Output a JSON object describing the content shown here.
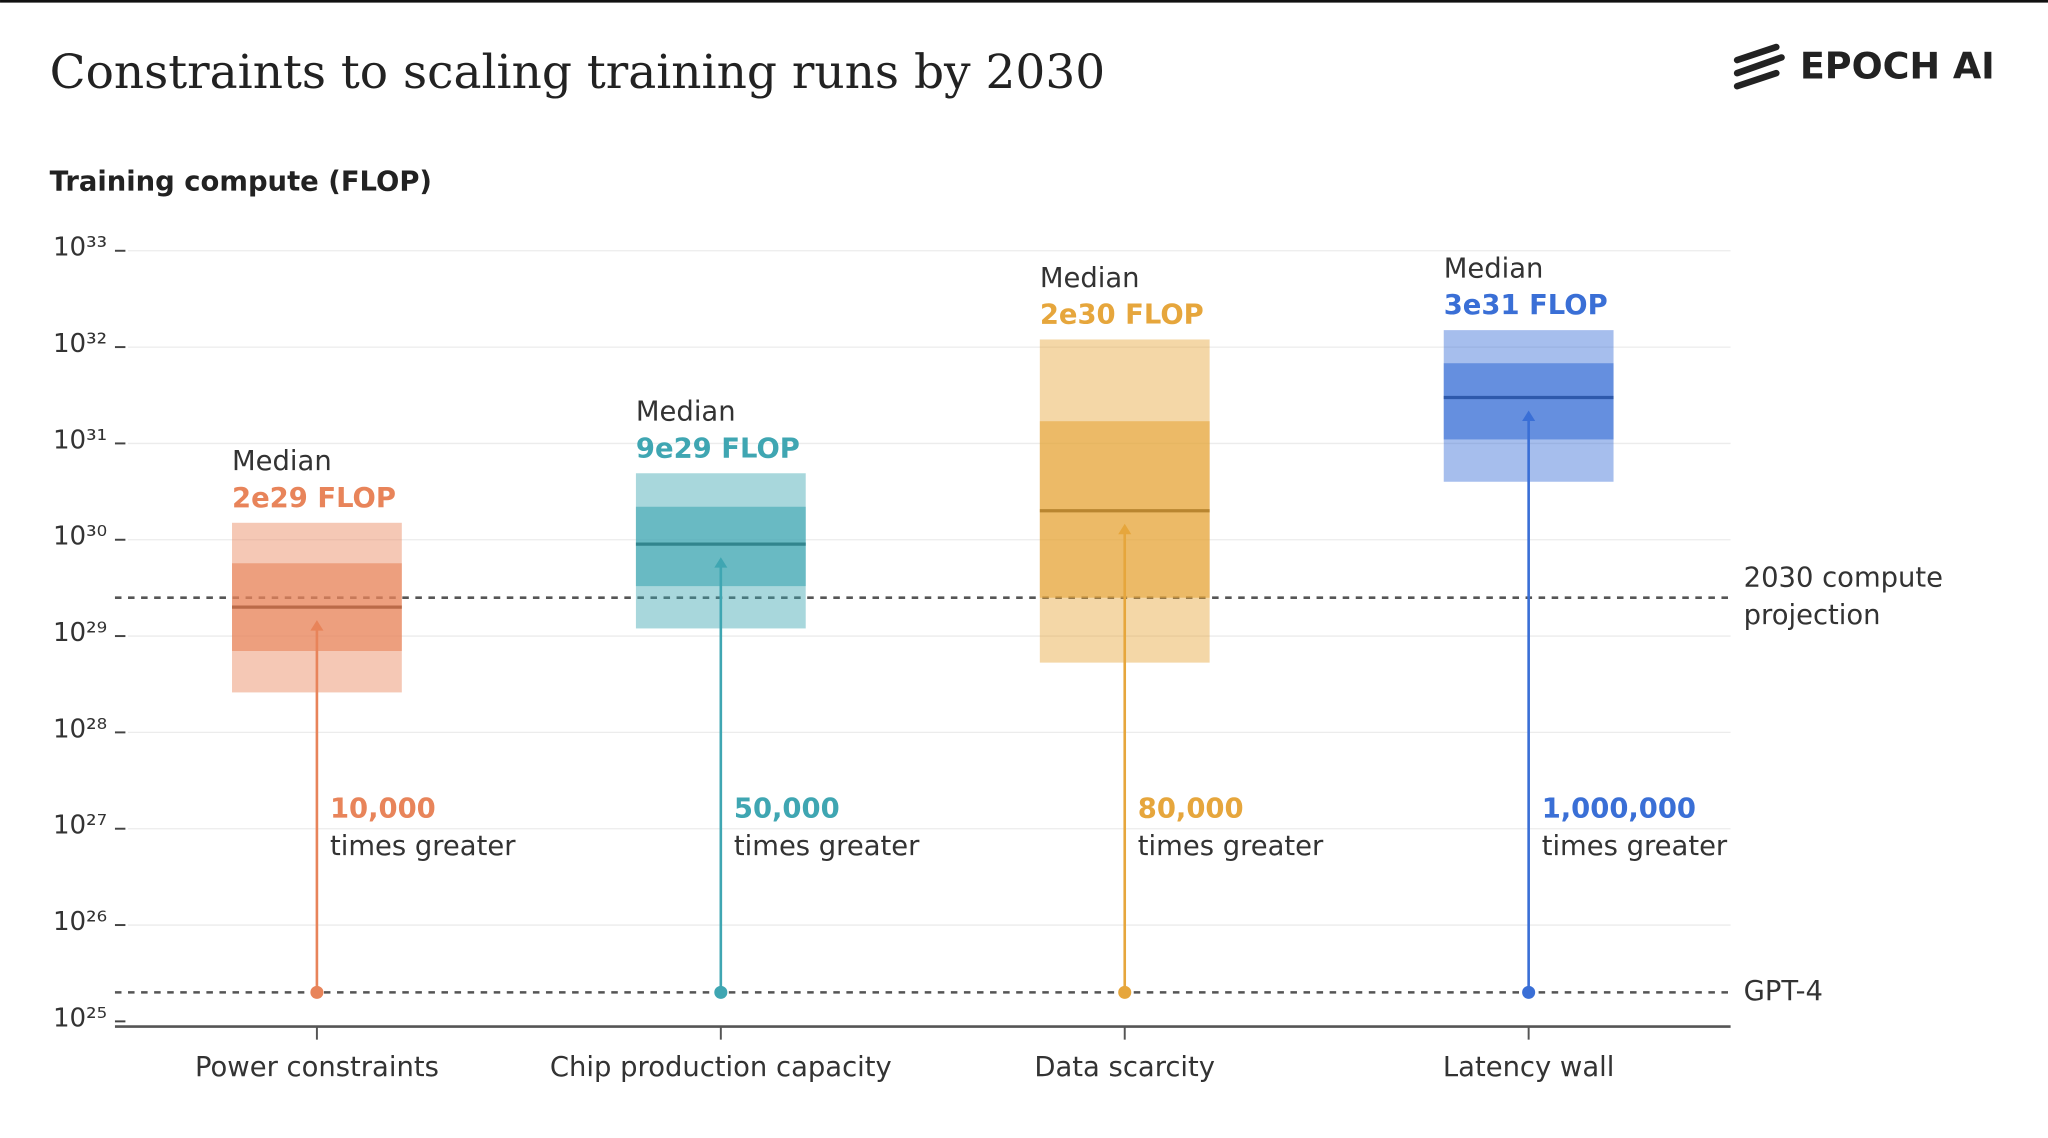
{
  "chart_data": {
    "type": "range-box",
    "title": "Constraints to scaling training runs by 2030",
    "logo": "EPOCH AI",
    "y_label": "Training compute (FLOP)",
    "log_scale": true,
    "grid": true,
    "ylim": [
      1e+25,
      1e+33
    ],
    "yticks": [
      {
        "value": 1e+25,
        "label": "10²⁵"
      },
      {
        "value": 1e+26,
        "label": "10²⁶"
      },
      {
        "value": 1e+27,
        "label": "10²⁷"
      },
      {
        "value": 1e+28,
        "label": "10²⁸"
      },
      {
        "value": 1e+29,
        "label": "10²⁹"
      },
      {
        "value": 1e+30,
        "label": "10³⁰"
      },
      {
        "value": 1e+31,
        "label": "10³¹"
      },
      {
        "value": 1e+32,
        "label": "10³²"
      },
      {
        "value": 1e+33,
        "label": "10³³"
      }
    ],
    "median_caption": "Median",
    "ratio_caption": "times greater",
    "reference_lines": [
      {
        "label_lines": [
          "2030 compute",
          "projection"
        ],
        "value": 2.5e+29
      },
      {
        "label_lines": [
          "GPT-4"
        ],
        "value": 2e+25
      }
    ],
    "series": [
      {
        "name": "Power constraints",
        "color": "#e8845a",
        "low": 2.6e+28,
        "q1": 7e+28,
        "median": 2e+29,
        "q3": 5.7e+29,
        "high": 1.5e+30,
        "median_label": "2e29 FLOP",
        "ratio_label": "10,000"
      },
      {
        "name": "Chip production capacity",
        "color": "#3fa6b2",
        "low": 1.2e+29,
        "q1": 3.3e+29,
        "median": 9e+29,
        "q3": 2.2e+30,
        "high": 4.9e+30,
        "median_label": "9e29 FLOP",
        "ratio_label": "50,000"
      },
      {
        "name": "Data scarcity",
        "color": "#e6a63c",
        "low": 5.3e+28,
        "q1": 2.5e+29,
        "median": 2e+30,
        "q3": 1.7e+31,
        "high": 1.2e+32,
        "median_label": "2e30 FLOP",
        "ratio_label": "80,000"
      },
      {
        "name": "Latency wall",
        "color": "#3a6fd6",
        "low": 4e+30,
        "q1": 1.1e+31,
        "median": 3e+31,
        "q3": 6.8e+31,
        "high": 1.5e+32,
        "median_label": "3e31 FLOP",
        "ratio_label": "1,000,000"
      }
    ]
  }
}
